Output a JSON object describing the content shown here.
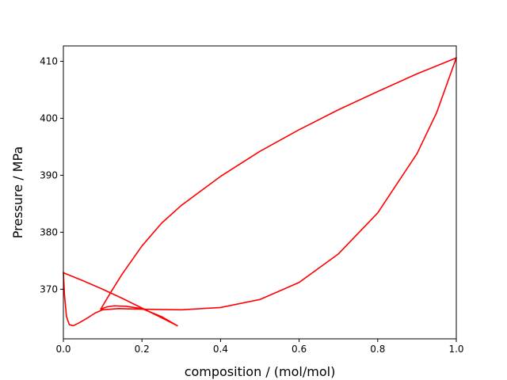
{
  "chart_data": {
    "type": "line",
    "title": "",
    "xlabel": "composition / (mol/mol)",
    "ylabel": "Pressure / MPa",
    "xlim": [
      0.0,
      1.0
    ],
    "ylim": [
      361.3,
      412.7
    ],
    "xticks": [
      0.0,
      0.2,
      0.4,
      0.6,
      0.8,
      1.0
    ],
    "xtick_labels": [
      "0.0",
      "0.2",
      "0.4",
      "0.6",
      "0.8",
      "1.0"
    ],
    "yticks": [
      370,
      380,
      390,
      400,
      410
    ],
    "ytick_labels": [
      "370",
      "380",
      "390",
      "400",
      "410"
    ],
    "grid": false,
    "line_color": "#ff0000",
    "series": [
      {
        "x": [
          0.0,
          0.003,
          0.008,
          0.015,
          0.025,
          0.04,
          0.06,
          0.08,
          0.1,
          0.14,
          0.2,
          0.3,
          0.4,
          0.5,
          0.6,
          0.7,
          0.8,
          0.9,
          0.95,
          1.0
        ],
        "y": [
          373.0,
          368.8,
          365.2,
          363.8,
          363.6,
          364.1,
          364.9,
          365.8,
          366.4,
          366.6,
          366.5,
          366.4,
          366.8,
          368.2,
          371.2,
          376.2,
          383.4,
          393.8,
          401.0,
          410.6
        ]
      },
      {
        "x": [
          0.0,
          0.05,
          0.1,
          0.15,
          0.2,
          0.25,
          0.29
        ],
        "y": [
          372.9,
          371.5,
          370.0,
          368.4,
          366.7,
          365.0,
          363.6
        ]
      },
      {
        "x": [
          0.095,
          0.11,
          0.13,
          0.16,
          0.2,
          0.25,
          0.29
        ],
        "y": [
          366.5,
          366.9,
          367.1,
          367.0,
          366.6,
          365.2,
          363.6
        ]
      },
      {
        "x": [
          0.095,
          0.12,
          0.15,
          0.2,
          0.25,
          0.3,
          0.4,
          0.5,
          0.6,
          0.7,
          0.8,
          0.9,
          1.0
        ],
        "y": [
          366.5,
          369.4,
          372.7,
          377.6,
          381.6,
          384.7,
          389.8,
          394.2,
          398.0,
          401.5,
          404.7,
          407.8,
          410.6
        ]
      }
    ]
  }
}
